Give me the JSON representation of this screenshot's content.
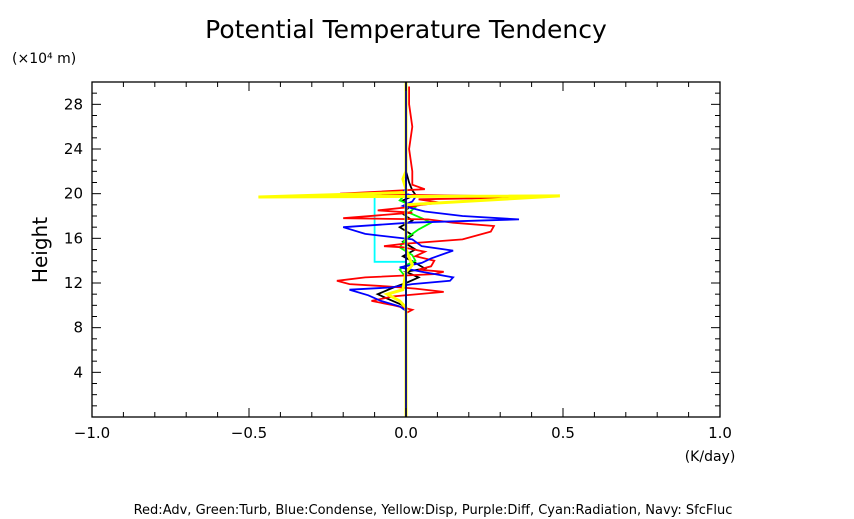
{
  "chart_data": {
    "type": "line",
    "title": "Potential Temperature Tendency",
    "ylabel": "Height",
    "y_unit": "(×10⁴ m)",
    "x_unit": "(K/day)",
    "xlim": [
      -1.0,
      1.0
    ],
    "ylim": [
      0,
      30
    ],
    "x_ticks": [
      "−1.0",
      "−0.5",
      "0.0",
      "0.5",
      "1.0"
    ],
    "x_tick_values": [
      -1.0,
      -0.5,
      0.0,
      0.5,
      1.0
    ],
    "y_ticks": [
      "4",
      "8",
      "12",
      "16",
      "20",
      "24",
      "28"
    ],
    "y_tick_values": [
      4,
      8,
      12,
      16,
      20,
      24,
      28
    ],
    "grid": false,
    "legend_text": "Red:Adv, Green:Turb, Blue:Condense, Yellow:Disp, Purple:Diff, Cyan:Radiation, Navy: SfcFluc",
    "series": [
      {
        "color": "#00ffff",
        "points": [
          [
            0,
            0
          ],
          [
            0,
            13.9
          ],
          [
            -0.1,
            13.9
          ],
          [
            -0.1,
            19.9
          ],
          [
            0,
            19.9
          ],
          [
            0,
            30
          ]
        ]
      },
      {
        "color": "#000000",
        "points": [
          [
            0,
            0
          ],
          [
            0,
            9.5
          ],
          [
            -0.01,
            10.0
          ],
          [
            -0.06,
            10.6
          ],
          [
            -0.09,
            11.0
          ],
          [
            -0.04,
            11.6
          ],
          [
            0,
            12.0
          ],
          [
            0.04,
            12.5
          ],
          [
            0,
            13.0
          ],
          [
            0.06,
            13.3
          ],
          [
            0.03,
            13.8
          ],
          [
            -0.01,
            14.4
          ],
          [
            0.03,
            15.0
          ],
          [
            -0.01,
            15.7
          ],
          [
            0.02,
            16.3
          ],
          [
            -0.02,
            17.0
          ],
          [
            0.02,
            17.6
          ],
          [
            -0.01,
            18.2
          ],
          [
            0.01,
            18.8
          ],
          [
            -0.01,
            19.4
          ],
          [
            0.03,
            19.9
          ],
          [
            0.02,
            20.3
          ],
          [
            0.01,
            21.0
          ],
          [
            0,
            22.0
          ],
          [
            0,
            30
          ]
        ]
      },
      {
        "color": "#00ff00",
        "points": [
          [
            0,
            0
          ],
          [
            0,
            12.5
          ],
          [
            -0.02,
            13.2
          ],
          [
            0,
            13.6
          ],
          [
            0.03,
            14.0
          ],
          [
            0.02,
            14.5
          ],
          [
            -0.02,
            15.2
          ],
          [
            0,
            16.0
          ],
          [
            0.04,
            16.8
          ],
          [
            0.08,
            17.4
          ],
          [
            0.05,
            17.8
          ],
          [
            0.01,
            18.3
          ],
          [
            0.03,
            18.8
          ],
          [
            -0.02,
            19.4
          ],
          [
            0,
            20.0
          ],
          [
            0,
            30
          ]
        ]
      },
      {
        "color": "#ff0000",
        "points": [
          [
            0,
            7.4
          ],
          [
            0,
            9.3
          ],
          [
            0.02,
            9.6
          ],
          [
            -0.04,
            10.0
          ],
          [
            -0.11,
            10.4
          ],
          [
            -0.04,
            10.8
          ],
          [
            0.12,
            11.2
          ],
          [
            0.03,
            11.5
          ],
          [
            -0.06,
            11.7
          ],
          [
            -0.18,
            11.9
          ],
          [
            -0.22,
            12.2
          ],
          [
            -0.13,
            12.5
          ],
          [
            0.09,
            12.8
          ],
          [
            0.12,
            13.0
          ],
          [
            0.04,
            13.2
          ],
          [
            0.08,
            13.5
          ],
          [
            0.09,
            14.0
          ],
          [
            0.03,
            14.4
          ],
          [
            0.06,
            14.8
          ],
          [
            -0.01,
            15.2
          ],
          [
            -0.07,
            15.3
          ],
          [
            -0.01,
            15.5
          ],
          [
            0.18,
            15.9
          ],
          [
            0.27,
            16.6
          ],
          [
            0.28,
            17.1
          ],
          [
            0.15,
            17.4
          ],
          [
            0.07,
            17.7
          ],
          [
            -0.2,
            17.8
          ],
          [
            -0.07,
            18.1
          ],
          [
            0.02,
            18.3
          ],
          [
            -0.09,
            18.5
          ],
          [
            0.01,
            18.8
          ],
          [
            0.05,
            19.0
          ],
          [
            0.11,
            19.2
          ],
          [
            0.04,
            19.5
          ],
          [
            0.45,
            19.7
          ],
          [
            -0.21,
            20.0
          ],
          [
            0.06,
            20.4
          ],
          [
            0.02,
            20.8
          ],
          [
            0.02,
            22.0
          ],
          [
            0.01,
            24.0
          ],
          [
            0.02,
            26.0
          ],
          [
            0.01,
            28.0
          ],
          [
            0.01,
            29.6
          ]
        ]
      },
      {
        "color": "#0000ff",
        "points": [
          [
            0,
            0
          ],
          [
            0,
            9.5
          ],
          [
            -0.02,
            9.9
          ],
          [
            -0.08,
            10.4
          ],
          [
            -0.12,
            10.9
          ],
          [
            -0.18,
            11.4
          ],
          [
            -0.05,
            11.6
          ],
          [
            0.02,
            11.9
          ],
          [
            0.14,
            12.2
          ],
          [
            0.15,
            12.5
          ],
          [
            0.05,
            13.0
          ],
          [
            -0.02,
            13.4
          ],
          [
            0.05,
            13.8
          ],
          [
            0.08,
            14.2
          ],
          [
            0.15,
            14.9
          ],
          [
            0.05,
            15.3
          ],
          [
            0.02,
            15.9
          ],
          [
            -0.13,
            16.4
          ],
          [
            -0.2,
            17.0
          ],
          [
            0.01,
            17.4
          ],
          [
            0.36,
            17.7
          ],
          [
            0.18,
            18.0
          ],
          [
            0.06,
            18.4
          ],
          [
            -0.01,
            18.9
          ],
          [
            0.02,
            19.3
          ],
          [
            0.03,
            19.7
          ],
          [
            -0.01,
            20.1
          ],
          [
            0,
            20.5
          ],
          [
            0,
            30
          ]
        ]
      },
      {
        "color": "#ffff00",
        "points": [
          [
            0,
            0
          ],
          [
            0,
            9.8
          ],
          [
            -0.02,
            10.4
          ],
          [
            -0.06,
            11.0
          ],
          [
            -0.01,
            11.4
          ],
          [
            0,
            13.0
          ],
          [
            0.02,
            13.6
          ],
          [
            0.01,
            14.3
          ],
          [
            0,
            15.0
          ],
          [
            0,
            16.0
          ],
          [
            0,
            17.5
          ],
          [
            0,
            19.0
          ],
          [
            0.49,
            19.8
          ],
          [
            -0.47,
            19.7
          ],
          [
            0,
            20.1
          ],
          [
            0,
            20.4
          ],
          [
            -0.01,
            21.3
          ],
          [
            0,
            22.0
          ],
          [
            0,
            30
          ]
        ]
      },
      {
        "color": "#000080",
        "points": [
          [
            0,
            0
          ],
          [
            0,
            30
          ]
        ]
      }
    ]
  }
}
